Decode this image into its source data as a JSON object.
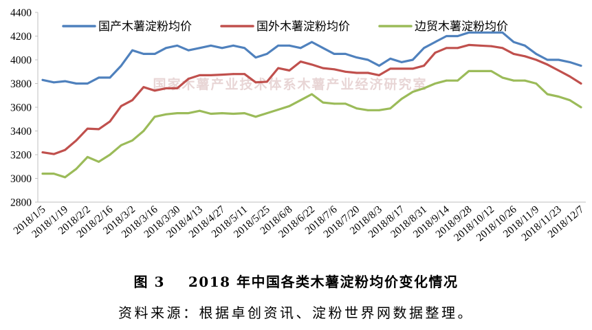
{
  "chart_data": {
    "type": "line",
    "title": "2018 年中国各类木薯淀粉均价变化情况",
    "ylim": [
      2800,
      4400
    ],
    "yticks": [
      2800,
      3000,
      3200,
      3400,
      3600,
      3800,
      4000,
      4200,
      4400
    ],
    "grid": false,
    "legend_position": "top",
    "x": [
      "2018/1/5",
      "2018/1/12",
      "2018/1/19",
      "2018/1/26",
      "2018/2/2",
      "2018/2/9",
      "2018/2/16",
      "2018/2/23",
      "2018/3/2",
      "2018/3/9",
      "2018/3/16",
      "2018/3/23",
      "2018/3/30",
      "2018/4/6",
      "2018/4/13",
      "2018/4/20",
      "2018/4/27",
      "2018/5/4",
      "2018/5/11",
      "2018/5/18",
      "2018/5/25",
      "2018/6/1",
      "2018/6/8",
      "2018/6/15",
      "2018/6/22",
      "2018/6/29",
      "2018/7/6",
      "2018/7/13",
      "2018/7/20",
      "2018/7/27",
      "2018/8/3",
      "2018/8/10",
      "2018/8/17",
      "2018/8/24",
      "2018/8/31",
      "2018/9/7",
      "2018/9/14",
      "2018/9/21",
      "2018/9/28",
      "2018/10/5",
      "2018/10/12",
      "2018/10/19",
      "2018/10/26",
      "2018/11/2",
      "2018/11/9",
      "2018/11/16",
      "2018/11/23",
      "2018/11/30",
      "2018/12/7"
    ],
    "xticks": [
      "2018/1/5",
      "2018/1/19",
      "2018/2/2",
      "2018/2/16",
      "2018/3/2",
      "2018/3/16",
      "2018/3/30",
      "2018/4/13",
      "2018/4/27",
      "2018/5/11",
      "2018/5/25",
      "2018/6/8",
      "2018/6/22",
      "2018/7/6",
      "2018/7/20",
      "2018/8/3",
      "2018/8/17",
      "2018/8/31",
      "2018/9/14",
      "2018/9/28",
      "2018/10/12",
      "2018/10/26",
      "2018/11/9",
      "2018/11/23",
      "2018/12/7"
    ],
    "series": [
      {
        "name": "国产木薯淀粉均价",
        "color": "#4f81bd",
        "values": [
          3830,
          3810,
          3820,
          3800,
          3800,
          3850,
          3850,
          3950,
          4080,
          4050,
          4050,
          4100,
          4120,
          4080,
          4100,
          4120,
          4100,
          4120,
          4100,
          4020,
          4050,
          4120,
          4120,
          4100,
          4150,
          4100,
          4050,
          4050,
          4020,
          4000,
          3950,
          4010,
          3980,
          4000,
          4100,
          4150,
          4200,
          4200,
          4230,
          4230,
          4230,
          4230,
          4150,
          4120,
          4050,
          4000,
          4000,
          3980,
          3950
        ]
      },
      {
        "name": "国外木薯淀粉均价",
        "color": "#c0504d",
        "values": [
          3220,
          3205,
          3240,
          3320,
          3420,
          3415,
          3480,
          3610,
          3660,
          3770,
          3740,
          3760,
          3760,
          3840,
          3870,
          3870,
          3875,
          3880,
          3880,
          3810,
          3815,
          3930,
          3910,
          3985,
          3960,
          3930,
          3920,
          3900,
          3890,
          3890,
          3870,
          3925,
          3925,
          3925,
          3950,
          4060,
          4100,
          4100,
          4125,
          4120,
          4115,
          4100,
          4050,
          4030,
          4000,
          3960,
          3910,
          3860,
          3800
        ]
      },
      {
        "name": "边贸木薯淀粉均价",
        "color": "#9bbb59",
        "values": [
          3040,
          3040,
          3010,
          3080,
          3180,
          3140,
          3200,
          3280,
          3320,
          3400,
          3520,
          3540,
          3550,
          3550,
          3570,
          3545,
          3550,
          3545,
          3550,
          3520,
          3550,
          3580,
          3610,
          3660,
          3710,
          3640,
          3630,
          3630,
          3590,
          3575,
          3575,
          3590,
          3670,
          3730,
          3760,
          3800,
          3825,
          3825,
          3905,
          3905,
          3905,
          3850,
          3825,
          3825,
          3800,
          3710,
          3690,
          3660,
          3600
        ]
      }
    ]
  },
  "watermark": "国家木薯产业技术体系木薯产业经济研究室",
  "figure": {
    "label": "图 3",
    "source": "资料来源：根据卓创资讯、淀粉世界网数据整理。"
  }
}
